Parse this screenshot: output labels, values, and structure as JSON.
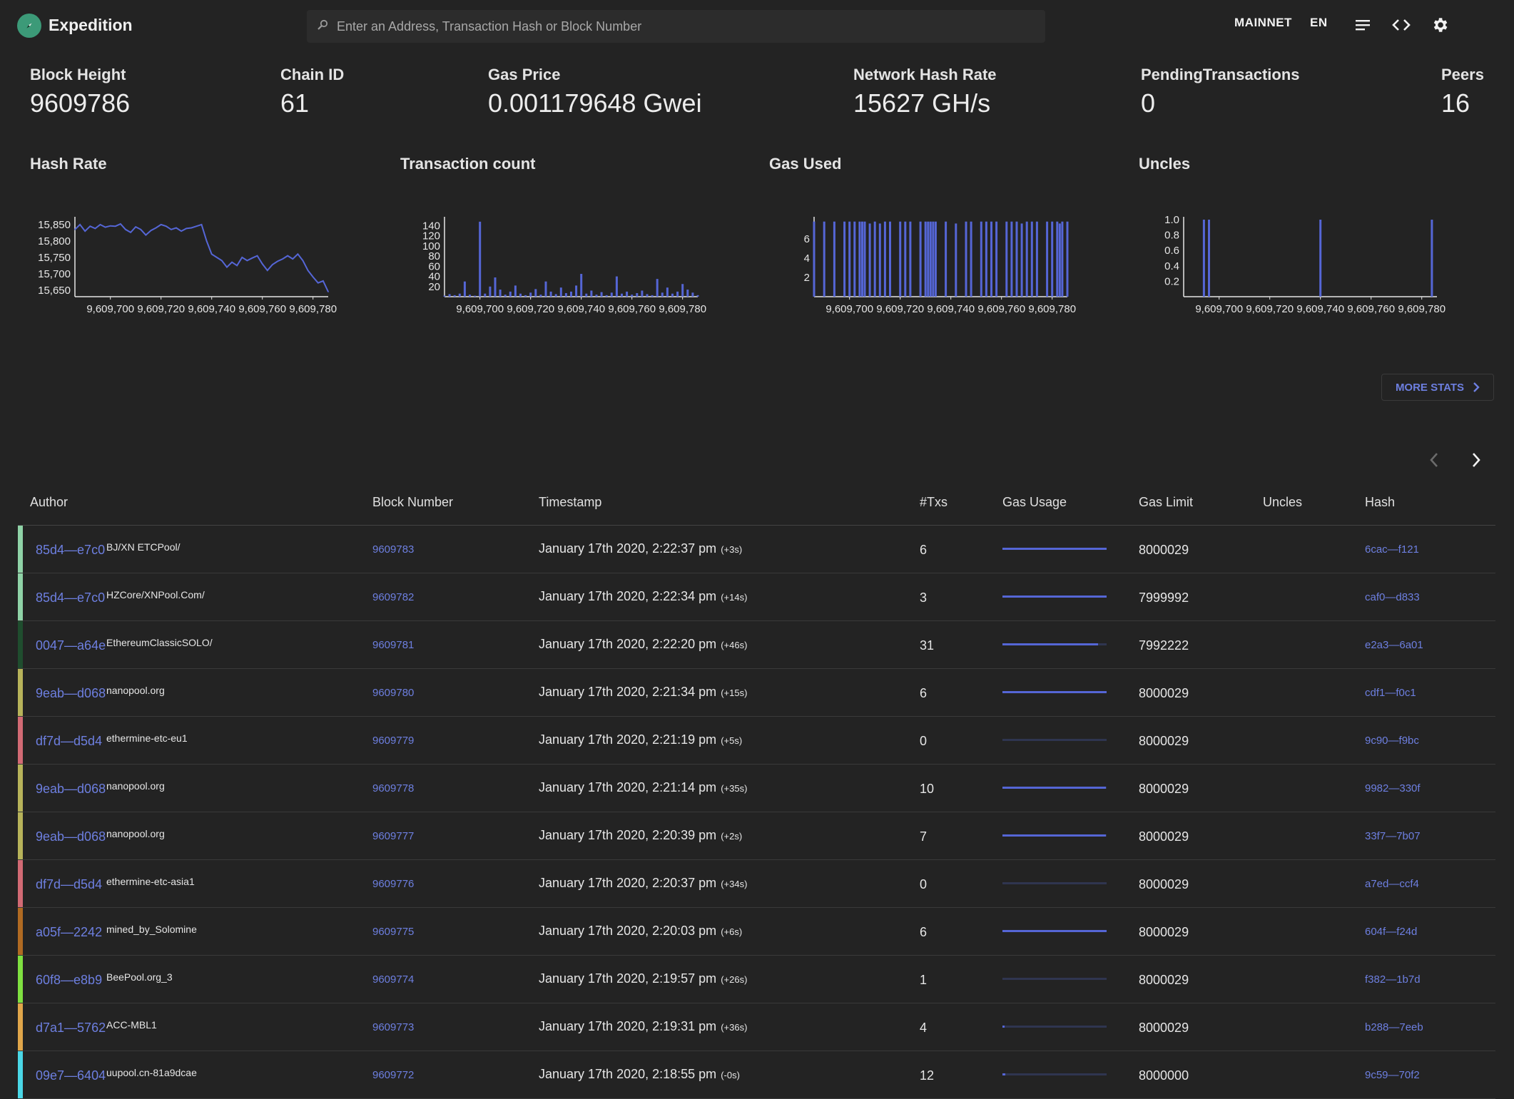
{
  "app": {
    "title": "Expedition"
  },
  "search": {
    "placeholder": "Enter an Address, Transaction Hash or Block Number"
  },
  "header": {
    "network_label": "MAINNET",
    "language_label": "EN",
    "icons": [
      "menu-icon",
      "code-icon",
      "settings-icon",
      "dark-mode-icon"
    ]
  },
  "stats": {
    "block_height": {
      "label": "Block Height",
      "value": "9609786"
    },
    "chain_id": {
      "label": "Chain ID",
      "value": "61"
    },
    "gas_price": {
      "label": "Gas Price",
      "value": "0.001179648 Gwei"
    },
    "hash_rate": {
      "label": "Network Hash Rate",
      "value": "15627 GH/s"
    },
    "pending": {
      "label": "PendingTransactions",
      "value": "0"
    },
    "peers": {
      "label": "Peers",
      "value": "16"
    }
  },
  "chart_titles": {
    "hash_rate": "Hash Rate",
    "tx_count": "Transaction count",
    "gas_used": "Gas Used",
    "uncles": "Uncles"
  },
  "chart_data": [
    {
      "type": "line",
      "title": "Hash Rate",
      "x": [
        9609686,
        9609688,
        9609690,
        9609692,
        9609694,
        9609696,
        9609698,
        9609700,
        9609702,
        9609704,
        9609706,
        9609708,
        9609710,
        9609712,
        9609714,
        9609716,
        9609718,
        9609720,
        9609722,
        9609724,
        9609726,
        9609728,
        9609730,
        9609732,
        9609734,
        9609736,
        9609738,
        9609740,
        9609742,
        9609744,
        9609746,
        9609748,
        9609750,
        9609752,
        9609754,
        9609756,
        9609758,
        9609760,
        9609762,
        9609764,
        9609766,
        9609768,
        9609770,
        9609772,
        9609774,
        9609776,
        9609778,
        9609780,
        9609782,
        9609784,
        9609786
      ],
      "y": [
        15835,
        15850,
        15830,
        15845,
        15838,
        15850,
        15842,
        15846,
        15845,
        15852,
        15835,
        15826,
        15843,
        15835,
        15818,
        15832,
        15840,
        15850,
        15845,
        15835,
        15840,
        15830,
        15838,
        15840,
        15845,
        15850,
        15800,
        15760,
        15750,
        15740,
        15720,
        15735,
        15725,
        15750,
        15740,
        15748,
        15755,
        15730,
        15710,
        15728,
        15738,
        15745,
        15755,
        15745,
        15760,
        15740,
        15710,
        15690,
        15672,
        15678,
        15645
      ],
      "xticks": [
        "9,609,700",
        "9,609,720",
        "9,609,740",
        "9,609,760",
        "9,609,780"
      ],
      "yticks": [
        "15,650",
        "15,700",
        "15,750",
        "15,800",
        "15,850"
      ],
      "xlim": [
        9609686,
        9609786
      ],
      "ylim": [
        15630,
        15865
      ],
      "color": "#5566d6"
    },
    {
      "type": "bar",
      "title": "Transaction count",
      "x": [
        9609686,
        9609688,
        9609690,
        9609692,
        9609694,
        9609696,
        9609698,
        9609700,
        9609702,
        9609704,
        9609706,
        9609708,
        9609710,
        9609712,
        9609714,
        9609716,
        9609718,
        9609720,
        9609722,
        9609724,
        9609726,
        9609728,
        9609730,
        9609732,
        9609734,
        9609736,
        9609738,
        9609740,
        9609742,
        9609744,
        9609746,
        9609748,
        9609750,
        9609752,
        9609754,
        9609756,
        9609758,
        9609760,
        9609762,
        9609764,
        9609766,
        9609768,
        9609770,
        9609772,
        9609774,
        9609776,
        9609778,
        9609780,
        9609782,
        9609784,
        9609786
      ],
      "y": [
        2,
        5,
        3,
        6,
        30,
        4,
        2,
        148,
        6,
        20,
        38,
        14,
        4,
        10,
        22,
        6,
        3,
        8,
        15,
        4,
        30,
        10,
        5,
        18,
        7,
        10,
        22,
        45,
        6,
        12,
        4,
        9,
        3,
        8,
        40,
        6,
        10,
        4,
        7,
        12,
        5,
        3,
        35,
        8,
        18,
        6,
        10,
        25,
        14,
        8,
        3
      ],
      "xticks": [
        "9,609,700",
        "9,609,720",
        "9,609,740",
        "9,609,760",
        "9,609,780"
      ],
      "yticks": [
        "20",
        "40",
        "60",
        "80",
        "100",
        "120",
        "140"
      ],
      "xlim": [
        9609686,
        9609786
      ],
      "ylim": [
        0,
        152
      ],
      "color": "#5566d6"
    },
    {
      "type": "bar",
      "title": "Gas Used",
      "x": [
        9609686,
        9609690,
        9609694,
        9609698,
        9609700,
        9609702,
        9609704,
        9609705,
        9609706,
        9609708,
        9609710,
        9609712,
        9609714,
        9609716,
        9609720,
        9609722,
        9609724,
        9609728,
        9609730,
        9609731,
        9609732,
        9609733,
        9609734,
        9609738,
        9609742,
        9609746,
        9609748,
        9609752,
        9609754,
        9609756,
        9609758,
        9609762,
        9609764,
        9609766,
        9609768,
        9609770,
        9609772,
        9609774,
        9609778,
        9609780,
        9609782,
        9609783,
        9609784,
        9609786
      ],
      "y": [
        7.8,
        7.8,
        7.8,
        7.8,
        7.8,
        7.8,
        7.8,
        7.8,
        7.8,
        7.6,
        7.8,
        7.6,
        7.8,
        7.8,
        7.8,
        7.8,
        7.8,
        7.8,
        7.8,
        7.8,
        7.8,
        7.8,
        7.8,
        7.8,
        7.6,
        7.8,
        7.8,
        7.8,
        7.8,
        7.8,
        7.8,
        7.8,
        7.8,
        7.8,
        7.6,
        7.8,
        7.8,
        7.8,
        7.8,
        7.8,
        7.8,
        7.6,
        7.8,
        7.8
      ],
      "xticks": [
        "9,609,700",
        "9,609,720",
        "9,609,740",
        "9,609,760",
        "9,609,780"
      ],
      "yticks": [
        "2",
        "4",
        "6"
      ],
      "xlim": [
        9609686,
        9609786
      ],
      "ylim": [
        0,
        8
      ],
      "color": "#5566d6"
    },
    {
      "type": "bar",
      "title": "Uncles",
      "x": [
        9609694,
        9609696,
        9609740,
        9609784
      ],
      "y": [
        1,
        1,
        1,
        1
      ],
      "xticks": [
        "9,609,700",
        "9,609,720",
        "9,609,740",
        "9,609,760",
        "9,609,780"
      ],
      "yticks": [
        "0.2",
        "0.4",
        "0.6",
        "0.8",
        "1.0"
      ],
      "xlim": [
        9609686,
        9609786
      ],
      "ylim": [
        0,
        1
      ],
      "color": "#5566d6"
    }
  ],
  "more_stats_label": "MORE STATS",
  "table": {
    "headers": {
      "author": "Author",
      "block_number": "Block Number",
      "timestamp": "Timestamp",
      "txs": "#Txs",
      "gas_usage": "Gas Usage",
      "gas_limit": "Gas Limit",
      "uncles": "Uncles",
      "hash": "Hash"
    },
    "rows": [
      {
        "color": "#8fd3a7",
        "author": "85d4—e7c0",
        "extra": "BJ/XN ETCPool/",
        "number": "9609783",
        "timestamp": "January 17th 2020, 2:22:37 pm",
        "relative": "(+3s)",
        "txs": "6",
        "gas_usage": 1.0,
        "gas_limit": "8000029",
        "uncles": "",
        "hash": "6cac—f121"
      },
      {
        "color": "#8fd3a7",
        "author": "85d4—e7c0",
        "extra": "HZCore/XNPool.Com/",
        "number": "9609782",
        "timestamp": "January 17th 2020, 2:22:34 pm",
        "relative": "(+14s)",
        "txs": "3",
        "gas_usage": 1.0,
        "gas_limit": "7999992",
        "uncles": "",
        "hash": "caf0—d833"
      },
      {
        "color": "#1f4d2e",
        "author": "0047—a64e",
        "extra": "EthereumClassicSOLO/",
        "number": "9609781",
        "timestamp": "January 17th 2020, 2:22:20 pm",
        "relative": "(+46s)",
        "txs": "31",
        "gas_usage": 0.92,
        "gas_limit": "7992222",
        "uncles": "",
        "hash": "e2a3—6a01"
      },
      {
        "color": "#b7b35a",
        "author": "9eab—d068",
        "extra": "nanopool.org",
        "number": "9609780",
        "timestamp": "January 17th 2020, 2:21:34 pm",
        "relative": "(+15s)",
        "txs": "6",
        "gas_usage": 1.0,
        "gas_limit": "8000029",
        "uncles": "",
        "hash": "cdf1—f0c1"
      },
      {
        "color": "#d26a74",
        "author": "df7d—d5d4",
        "extra": "ethermine-etc-eu1",
        "number": "9609779",
        "timestamp": "January 17th 2020, 2:21:19 pm",
        "relative": "(+5s)",
        "txs": "0",
        "gas_usage": 0.0,
        "gas_limit": "8000029",
        "uncles": "",
        "hash": "9c90—f9bc"
      },
      {
        "color": "#b7b35a",
        "author": "9eab—d068",
        "extra": "nanopool.org",
        "number": "9609778",
        "timestamp": "January 17th 2020, 2:21:14 pm",
        "relative": "(+35s)",
        "txs": "10",
        "gas_usage": 0.99,
        "gas_limit": "8000029",
        "uncles": "",
        "hash": "9982—330f"
      },
      {
        "color": "#b7b35a",
        "author": "9eab—d068",
        "extra": "nanopool.org",
        "number": "9609777",
        "timestamp": "January 17th 2020, 2:20:39 pm",
        "relative": "(+2s)",
        "txs": "7",
        "gas_usage": 0.99,
        "gas_limit": "8000029",
        "uncles": "",
        "hash": "33f7—7b07"
      },
      {
        "color": "#d26a74",
        "author": "df7d—d5d4",
        "extra": "ethermine-etc-asia1",
        "number": "9609776",
        "timestamp": "January 17th 2020, 2:20:37 pm",
        "relative": "(+34s)",
        "txs": "0",
        "gas_usage": 0.0,
        "gas_limit": "8000029",
        "uncles": "",
        "hash": "a7ed—ccf4"
      },
      {
        "color": "#b06a22",
        "author": "a05f—2242",
        "extra": "mined_by_Solomine",
        "number": "9609775",
        "timestamp": "January 17th 2020, 2:20:03 pm",
        "relative": "(+6s)",
        "txs": "6",
        "gas_usage": 1.0,
        "gas_limit": "8000029",
        "uncles": "",
        "hash": "604f—f24d"
      },
      {
        "color": "#7fe040",
        "author": "60f8—e8b9",
        "extra": "BeePool.org_3",
        "number": "9609774",
        "timestamp": "January 17th 2020, 2:19:57 pm",
        "relative": "(+26s)",
        "txs": "1",
        "gas_usage": 0.0,
        "gas_limit": "8000029",
        "uncles": "",
        "hash": "f382—1b7d"
      },
      {
        "color": "#e0a64a",
        "author": "d7a1—5762",
        "extra": "ACC-MBL1",
        "number": "9609773",
        "timestamp": "January 17th 2020, 2:19:31 pm",
        "relative": "(+36s)",
        "txs": "4",
        "gas_usage": 0.02,
        "gas_limit": "8000029",
        "uncles": "",
        "hash": "b288—7eeb"
      },
      {
        "color": "#4ad7e6",
        "author": "09e7—6404",
        "extra": "uupool.cn-81a9dcae",
        "number": "9609772",
        "timestamp": "January 17th 2020, 2:18:55 pm",
        "relative": "(-0s)",
        "txs": "12",
        "gas_usage": 0.03,
        "gas_limit": "8000000",
        "uncles": "",
        "hash": "9c59—70f2"
      }
    ]
  }
}
